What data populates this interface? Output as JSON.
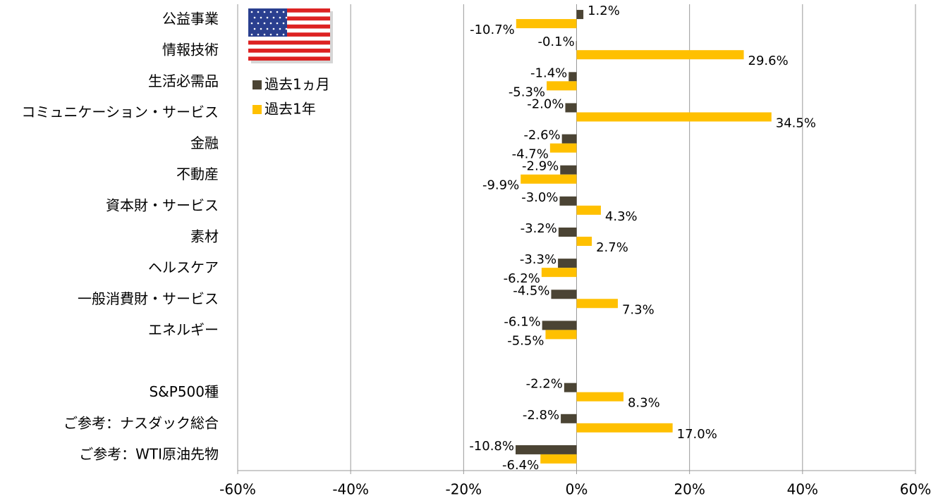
{
  "chart_data": {
    "type": "hbar",
    "categories": [
      "公益事業",
      "情報技術",
      "生活必需品",
      "コミュニケーション・サービス",
      "金融",
      "不動産",
      "資本財・サービス",
      "素材",
      "ヘルスケア",
      "一般消費財・サービス",
      "エネルギー",
      null,
      "S&P500種",
      "ご参考：ナスダック総合",
      "ご参考：WTI原油先物"
    ],
    "series": [
      {
        "name": "過去1ヵ月",
        "color": "#4b4434",
        "values": [
          1.2,
          -0.1,
          -1.4,
          -2.0,
          -2.6,
          -2.9,
          -3.0,
          -3.2,
          -3.3,
          -4.5,
          -6.1,
          null,
          -2.2,
          -2.8,
          -10.8
        ],
        "value_labels": [
          "1.2%",
          "-0.1%",
          "-1.4%",
          "-2.0%",
          "-2.6%",
          "-2.9%",
          "-3.0%",
          "-3.2%",
          "-3.3%",
          "-4.5%",
          "-6.1%",
          null,
          "-2.2%",
          "-2.8%",
          "-10.8%"
        ]
      },
      {
        "name": "過去1年",
        "color": "#ffc000",
        "values": [
          -10.7,
          29.6,
          -5.3,
          34.5,
          -4.7,
          -9.9,
          4.3,
          2.7,
          -6.2,
          7.3,
          -5.5,
          null,
          8.3,
          17.0,
          -6.4
        ],
        "value_labels": [
          "-10.7%",
          "29.6%",
          "-5.3%",
          "34.5%",
          "-4.7%",
          "-9.9%",
          "4.3%",
          "2.7%",
          "-6.2%",
          "7.3%",
          "-5.5%",
          null,
          "8.3%",
          "17.0%",
          "-6.4%"
        ]
      }
    ],
    "xlim": [
      -60,
      60
    ],
    "xticks": [
      {
        "value": -60,
        "label": "-60%"
      },
      {
        "value": -40,
        "label": "-40%"
      },
      {
        "value": -20,
        "label": "-20%"
      },
      {
        "value": 0,
        "label": "0%"
      },
      {
        "value": 20,
        "label": "20%"
      },
      {
        "value": 40,
        "label": "40%"
      },
      {
        "value": 60,
        "label": "60%"
      }
    ],
    "grid": true,
    "legend": "upper left"
  }
}
